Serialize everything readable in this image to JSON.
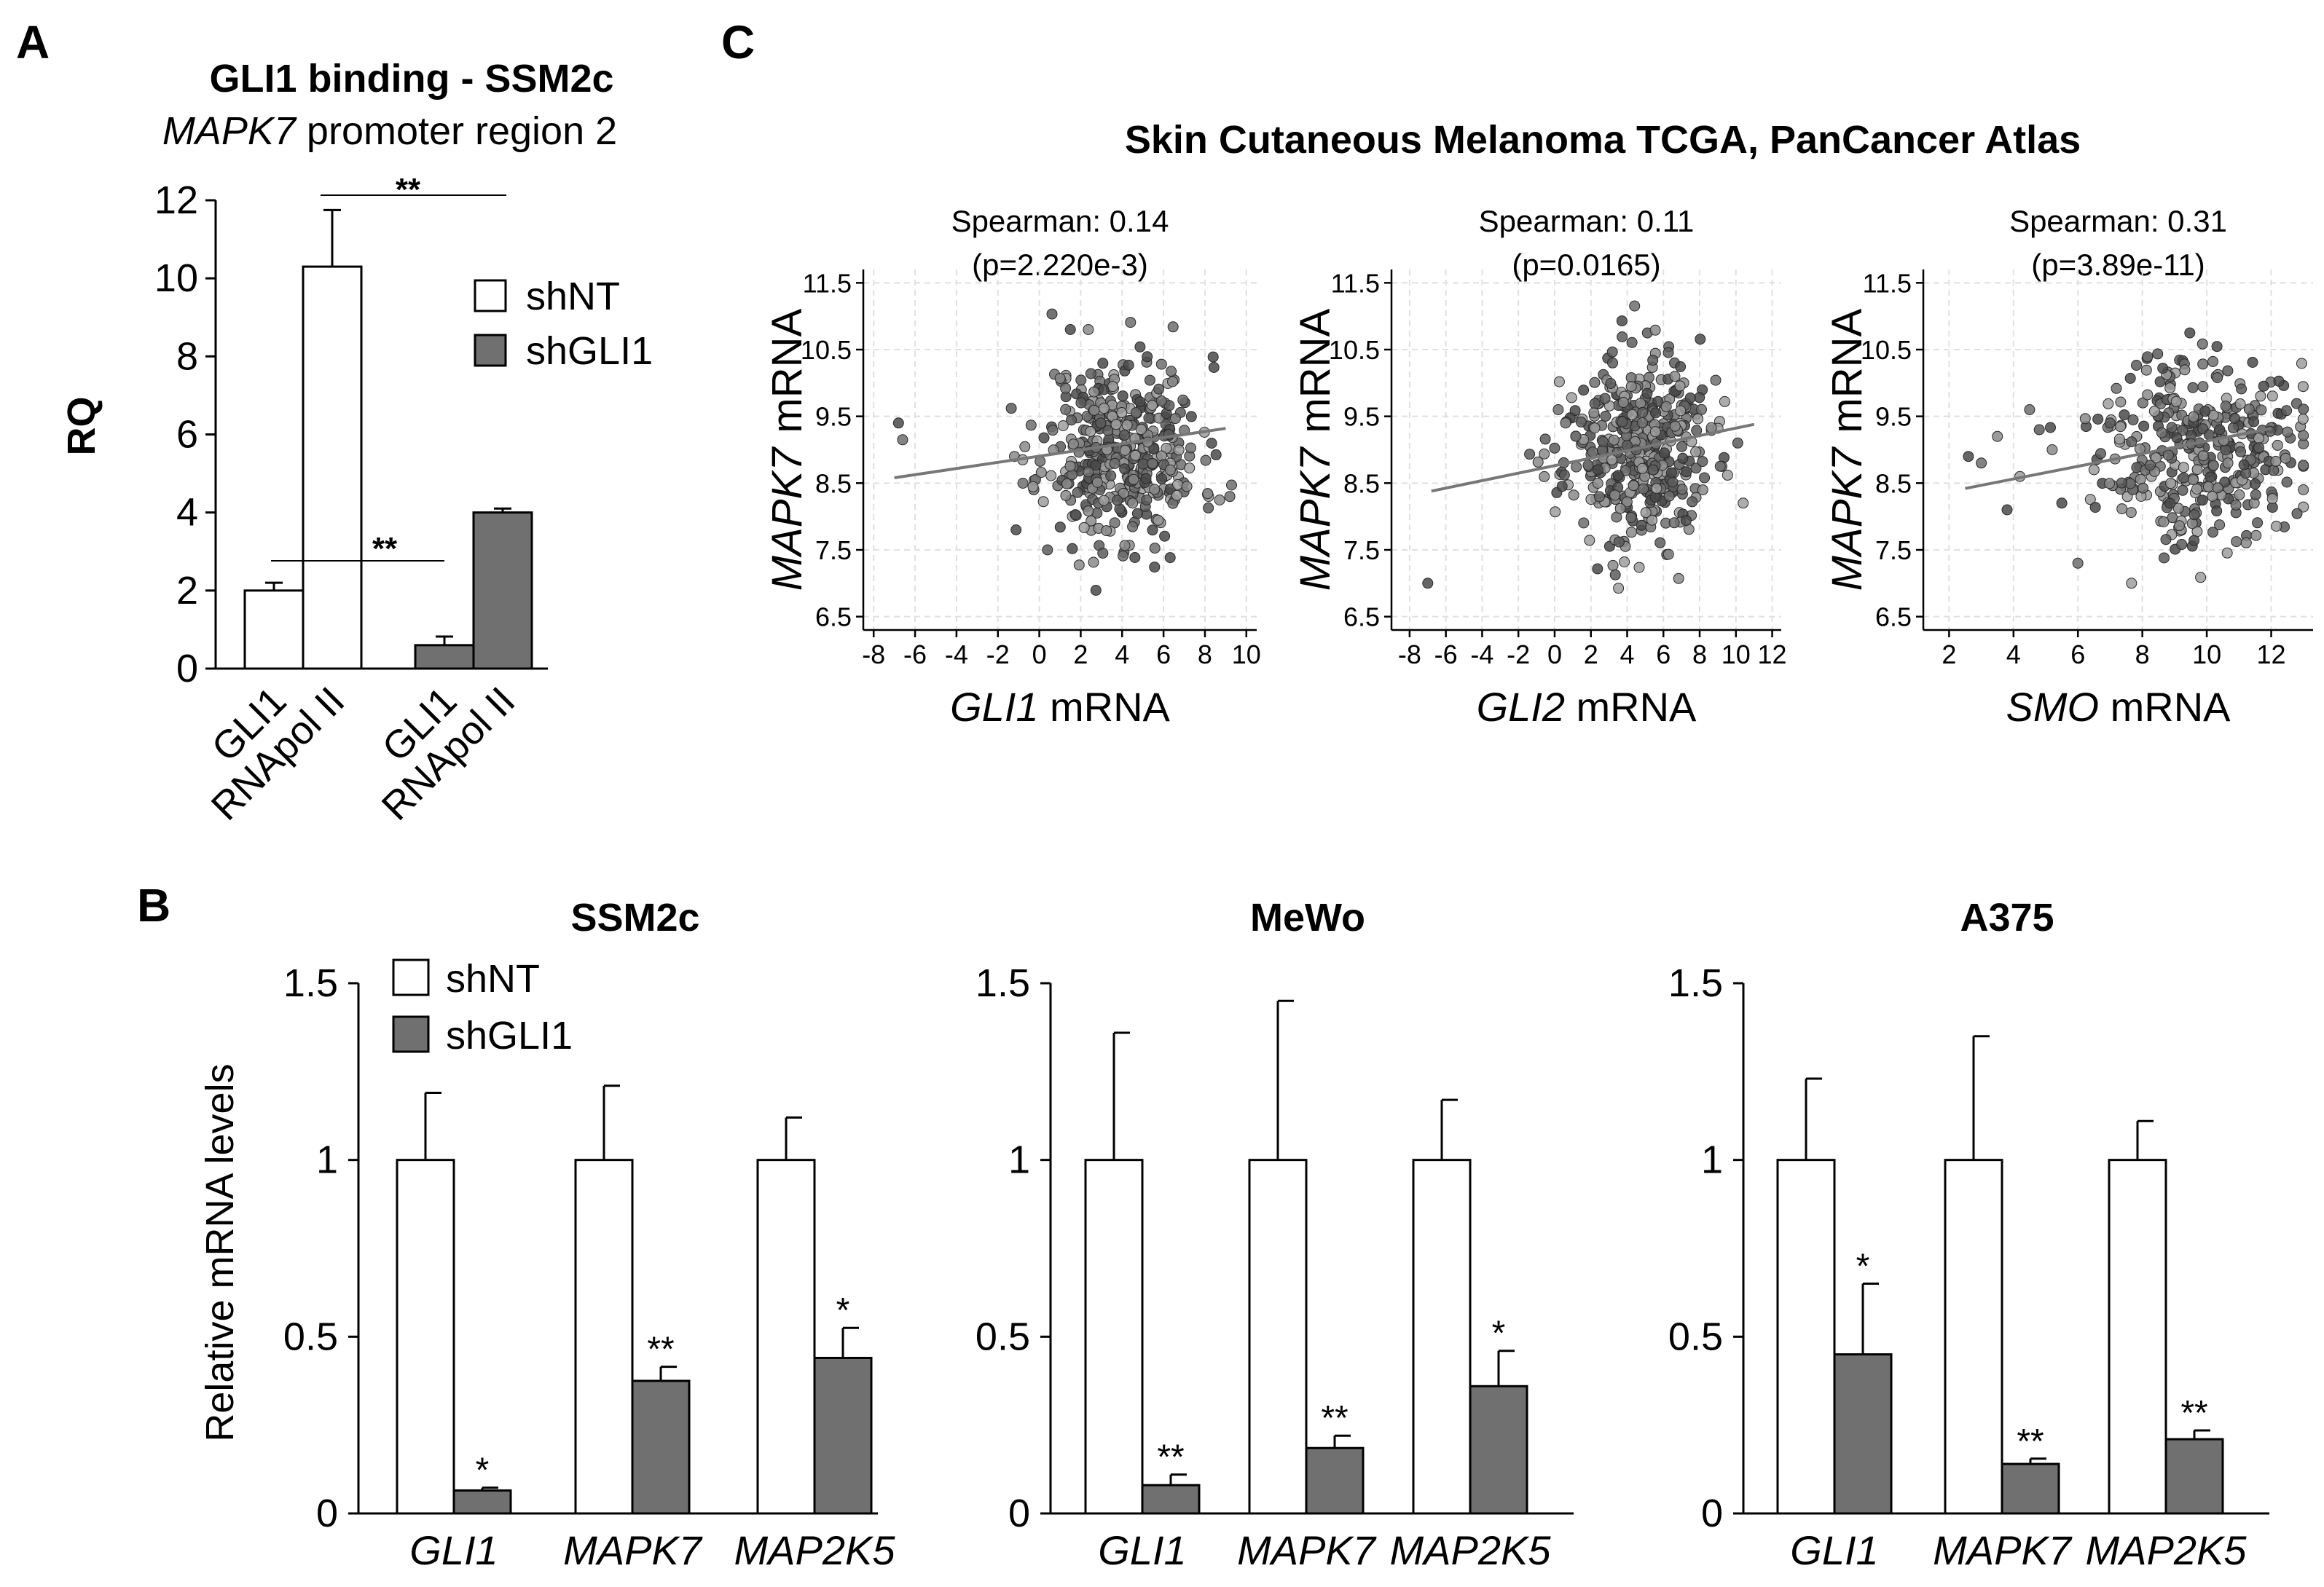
{
  "panels": {
    "a": {
      "letter": "A",
      "title": "GLI1 binding - SSM2c",
      "subtitle_gene": "MAPK7",
      "subtitle_rest": " promoter region 2",
      "ylabel": "RQ",
      "sig1": "**",
      "sig2": "**"
    },
    "b": {
      "letter": "B",
      "ylabel": "Relative mRNA levels"
    },
    "c": {
      "letter": "C",
      "title": "Skin Cutaneous Melanoma TCGA, PanCancer Atlas"
    }
  },
  "legend": {
    "shNT": "shNT",
    "shGLI1": "shGLI1"
  },
  "colors": {
    "white_bar": "#ffffff",
    "grey_bar": "#707070",
    "point": "#808080",
    "grid": "#e0e0e0",
    "fit_line": "#777777"
  },
  "chart_data": [
    {
      "id": "A",
      "type": "bar",
      "title": "GLI1 binding - SSM2c",
      "subtitle": "MAPK7 promoter region 2",
      "ylabel": "RQ",
      "ylim": [
        0,
        12
      ],
      "yticks": [
        0,
        2,
        4,
        6,
        8,
        10,
        12
      ],
      "groups": [
        {
          "condition": "shNT",
          "bars": [
            {
              "label": "GLI1",
              "value": 2.0,
              "error": 0.2,
              "color": "white"
            },
            {
              "label": "RNApol II",
              "value": 10.3,
              "error": 1.45,
              "color": "white"
            }
          ]
        },
        {
          "condition": "shGLI1",
          "bars": [
            {
              "label": "GLI1",
              "value": 0.6,
              "error": 0.22,
              "color": "grey"
            },
            {
              "label": "RNApol II",
              "value": 4.0,
              "error": 0.1,
              "color": "grey"
            }
          ]
        }
      ],
      "significance": [
        "**",
        "**"
      ]
    },
    {
      "id": "B1",
      "type": "bar",
      "title": "SSM2c",
      "ylabel": "Relative mRNA levels",
      "ylim": [
        0,
        1.5
      ],
      "yticks": [
        0,
        0.5,
        1,
        1.5
      ],
      "ytick_labels": [
        "0",
        "0.5",
        "1",
        "1.5"
      ],
      "categories": [
        "GLI1",
        "MAPK7",
        "MAP2K5"
      ],
      "series": [
        {
          "name": "shNT",
          "values": [
            1,
            1,
            1
          ],
          "errors": [
            0.19,
            0.21,
            0.12
          ]
        },
        {
          "name": "shGLI1",
          "values": [
            0.065,
            0.375,
            0.44
          ],
          "errors": [
            0.008,
            0.04,
            0.085
          ],
          "stars": [
            "*",
            "**",
            "*"
          ]
        }
      ]
    },
    {
      "id": "B2",
      "type": "bar",
      "title": "MeWo",
      "ylim": [
        0,
        1.5
      ],
      "yticks": [
        0,
        0.5,
        1,
        1.5
      ],
      "ytick_labels": [
        "0",
        "0.5",
        "1",
        "1.5"
      ],
      "categories": [
        "GLI1",
        "MAPK7",
        "MAP2K5"
      ],
      "series": [
        {
          "name": "shNT",
          "values": [
            1,
            1,
            1
          ],
          "errors": [
            0.36,
            0.45,
            0.17
          ]
        },
        {
          "name": "shGLI1",
          "values": [
            0.08,
            0.185,
            0.36
          ],
          "errors": [
            0.03,
            0.035,
            0.1
          ],
          "stars": [
            "**",
            "**",
            "*"
          ]
        }
      ]
    },
    {
      "id": "B3",
      "type": "bar",
      "title": "A375",
      "ylim": [
        0,
        1.5
      ],
      "yticks": [
        0,
        0.5,
        1,
        1.5
      ],
      "ytick_labels": [
        "0",
        "0.5",
        "1",
        "1.5"
      ],
      "categories": [
        "GLI1",
        "MAPK7",
        "MAP2K5"
      ],
      "series": [
        {
          "name": "shNT",
          "values": [
            1,
            1,
            1
          ],
          "errors": [
            0.23,
            0.35,
            0.11
          ]
        },
        {
          "name": "shGLI1",
          "values": [
            0.45,
            0.14,
            0.21
          ],
          "errors": [
            0.2,
            0.015,
            0.025
          ],
          "stars": [
            "*",
            "**",
            "**"
          ]
        }
      ]
    },
    {
      "id": "C1",
      "type": "scatter",
      "xlabel_gene": "GLI1",
      "xlabel_rest": " mRNA",
      "ylabel_gene": "MAPK7",
      "ylabel_rest": "mRNA",
      "annotation": "Spearman: 0.14",
      "pvalue": "(p=2.220e-3)",
      "xlim": [
        -8.5,
        10.5
      ],
      "xticks": [
        -8,
        -6,
        -4,
        -2,
        0,
        2,
        4,
        6,
        8,
        10
      ],
      "ylim": [
        6.3,
        11.7
      ],
      "yticks": [
        6.5,
        7.5,
        8.5,
        9.5,
        10.5,
        11.5
      ],
      "fit": {
        "x0": -7,
        "y0": 8.58,
        "x1": 9,
        "y1": 9.32
      },
      "cloud": {
        "x_mean": 4.0,
        "x_sd": 1.9,
        "y_mean": 9.0,
        "y_sd": 0.7,
        "n": 420,
        "seed": 11
      },
      "outliers": [
        [
          -6.8,
          9.4
        ],
        [
          -6.6,
          9.15
        ],
        [
          -1.2,
          8.9
        ],
        [
          -0.8,
          8.85
        ],
        [
          0.4,
          7.5
        ],
        [
          1.5,
          10.8
        ],
        [
          9.2,
          8.3
        ]
      ]
    },
    {
      "id": "C2",
      "type": "scatter",
      "xlabel_gene": "GLI2",
      "xlabel_rest": " mRNA",
      "ylabel_gene": "MAPK7",
      "ylabel_rest": "mRNA",
      "annotation": "Spearman: 0.11",
      "pvalue": "(p=0.0165)",
      "xlim": [
        -9,
        12.5
      ],
      "xticks": [
        -8,
        -6,
        -4,
        -2,
        0,
        2,
        4,
        6,
        8,
        10,
        12
      ],
      "ylim": [
        6.3,
        11.7
      ],
      "yticks": [
        6.5,
        7.5,
        8.5,
        9.5,
        10.5,
        11.5
      ],
      "fit": {
        "x0": -6.8,
        "y0": 8.38,
        "x1": 11,
        "y1": 9.38
      },
      "cloud": {
        "x_mean": 4.5,
        "x_sd": 2.0,
        "y_mean": 9.0,
        "y_sd": 0.7,
        "n": 420,
        "seed": 23
      },
      "outliers": [
        [
          -7.0,
          7.0
        ],
        [
          0.2,
          9.6
        ],
        [
          0.6,
          9.4
        ],
        [
          10.4,
          8.2
        ],
        [
          10.1,
          9.1
        ]
      ]
    },
    {
      "id": "C3",
      "type": "scatter",
      "xlabel_gene": "SMO",
      "xlabel_rest": " mRNA",
      "ylabel_gene": "MAPK7",
      "ylabel_rest": "mRNA",
      "annotation": "Spearman: 0.31",
      "pvalue": "(p=3.89e-11)",
      "xlim": [
        1.2,
        13.3
      ],
      "xticks": [
        2,
        4,
        6,
        8,
        10,
        12
      ],
      "ylim": [
        6.3,
        11.7
      ],
      "yticks": [
        6.5,
        7.5,
        8.5,
        9.5,
        10.5,
        11.5
      ],
      "fit": {
        "x0": 2.5,
        "y0": 8.42,
        "x1": 12,
        "y1": 9.32
      },
      "cloud": {
        "x_mean": 9.8,
        "x_sd": 1.5,
        "y_mean": 9.05,
        "y_sd": 0.7,
        "n": 360,
        "seed": 37
      },
      "outliers": [
        [
          2.6,
          8.9
        ],
        [
          3.0,
          8.8
        ],
        [
          3.5,
          9.2
        ],
        [
          4.2,
          8.6
        ],
        [
          4.8,
          9.3
        ],
        [
          5.5,
          8.2
        ],
        [
          6.0,
          7.3
        ],
        [
          5.2,
          9.0
        ],
        [
          6.5,
          8.7
        ],
        [
          7.0,
          9.4
        ],
        [
          3.8,
          8.1
        ],
        [
          4.5,
          9.6
        ]
      ]
    }
  ]
}
